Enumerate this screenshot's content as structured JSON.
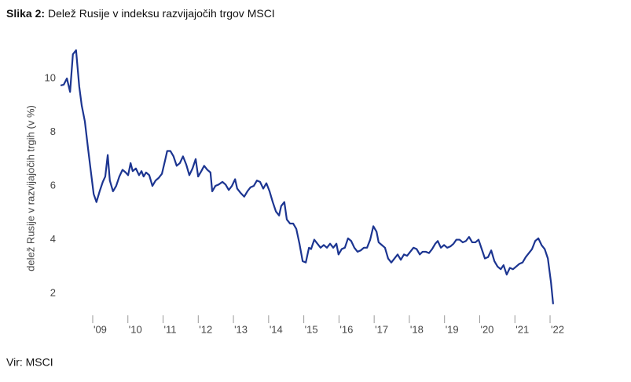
{
  "chart_data": {
    "type": "line",
    "figure_label": "Slika 2:",
    "title": "Delež Rusije v indeksu razvijajočih trgov MSCI",
    "y_label": "delež Rusije v razvijajočih trgih (v %)",
    "source": "Vir: MSCI",
    "color": "#1c3591",
    "x": [
      2008.02,
      2008.11,
      2008.2,
      2008.29,
      2008.37,
      2008.46,
      2008.55,
      2008.62,
      2008.71,
      2008.8,
      2008.87,
      2008.96,
      2009.04,
      2009.13,
      2009.22,
      2009.29,
      2009.36,
      2009.42,
      2009.51,
      2009.6,
      2009.69,
      2009.78,
      2009.87,
      2009.94,
      2010.01,
      2010.07,
      2010.16,
      2010.25,
      2010.32,
      2010.38,
      2010.45,
      2010.54,
      2010.63,
      2010.72,
      2010.81,
      2010.9,
      2010.99,
      2011.05,
      2011.14,
      2011.23,
      2011.32,
      2011.41,
      2011.5,
      2011.59,
      2011.68,
      2011.77,
      2011.86,
      2011.93,
      2012.02,
      2012.1,
      2012.19,
      2012.28,
      2012.33,
      2012.42,
      2012.51,
      2012.62,
      2012.71,
      2012.8,
      2012.89,
      2012.98,
      2013.04,
      2013.13,
      2013.24,
      2013.33,
      2013.42,
      2013.51,
      2013.6,
      2013.69,
      2013.78,
      2013.87,
      2013.96,
      2014.05,
      2014.14,
      2014.23,
      2014.29,
      2014.38,
      2014.45,
      2014.54,
      2014.63,
      2014.72,
      2014.81,
      2014.9,
      2014.99,
      2015.08,
      2015.14,
      2015.23,
      2015.32,
      2015.41,
      2015.5,
      2015.59,
      2015.68,
      2015.77,
      2015.86,
      2015.92,
      2016.01,
      2016.1,
      2016.19,
      2016.28,
      2016.37,
      2016.46,
      2016.55,
      2016.64,
      2016.73,
      2016.82,
      2016.91,
      2017.0,
      2017.06,
      2017.15,
      2017.24,
      2017.33,
      2017.42,
      2017.51,
      2017.6,
      2017.69,
      2017.78,
      2017.87,
      2017.96,
      2018.05,
      2018.14,
      2018.23,
      2018.31,
      2018.4,
      2018.49,
      2018.58,
      2018.67,
      2018.74,
      2018.83,
      2018.92,
      2019.01,
      2019.1,
      2019.19,
      2019.27,
      2019.36,
      2019.45,
      2019.54,
      2019.63,
      2019.72,
      2019.81,
      2019.9,
      2019.99,
      2020.08,
      2020.17,
      2020.26,
      2020.35,
      2020.44,
      2020.53,
      2020.61,
      2020.7,
      2020.79,
      2020.88,
      2020.97,
      2021.06,
      2021.15,
      2021.24,
      2021.33,
      2021.42,
      2021.51,
      2021.6,
      2021.69,
      2021.78,
      2021.87,
      2021.96,
      2022.02
    ],
    "values": [
      9.74,
      9.77,
      10.0,
      9.5,
      10.9,
      11.05,
      9.7,
      9.0,
      8.4,
      7.4,
      6.65,
      5.7,
      5.4,
      5.8,
      6.15,
      6.35,
      7.15,
      6.2,
      5.8,
      6.0,
      6.35,
      6.6,
      6.5,
      6.4,
      6.85,
      6.55,
      6.65,
      6.4,
      6.55,
      6.35,
      6.5,
      6.4,
      6.0,
      6.2,
      6.3,
      6.45,
      6.95,
      7.3,
      7.3,
      7.1,
      6.75,
      6.85,
      7.1,
      6.8,
      6.4,
      6.65,
      7.0,
      6.35,
      6.55,
      6.75,
      6.6,
      6.5,
      5.8,
      6.0,
      6.05,
      6.15,
      6.05,
      5.85,
      6.0,
      6.25,
      5.9,
      5.75,
      5.6,
      5.8,
      5.95,
      6.0,
      6.2,
      6.15,
      5.9,
      6.1,
      5.8,
      5.4,
      5.05,
      4.9,
      5.25,
      5.4,
      4.75,
      4.6,
      4.6,
      4.4,
      3.85,
      3.2,
      3.15,
      3.7,
      3.65,
      4.0,
      3.85,
      3.7,
      3.8,
      3.7,
      3.85,
      3.7,
      3.85,
      3.45,
      3.65,
      3.7,
      4.05,
      3.95,
      3.7,
      3.55,
      3.6,
      3.7,
      3.7,
      4.0,
      4.5,
      4.3,
      3.9,
      3.8,
      3.7,
      3.3,
      3.15,
      3.3,
      3.45,
      3.25,
      3.45,
      3.4,
      3.55,
      3.7,
      3.65,
      3.45,
      3.55,
      3.55,
      3.5,
      3.65,
      3.85,
      3.95,
      3.7,
      3.8,
      3.7,
      3.75,
      3.85,
      4.0,
      4.0,
      3.9,
      3.95,
      4.1,
      3.9,
      3.9,
      4.0,
      3.65,
      3.3,
      3.35,
      3.6,
      3.2,
      3.0,
      2.9,
      3.05,
      2.7,
      2.95,
      2.9,
      3.0,
      3.1,
      3.15,
      3.35,
      3.5,
      3.65,
      3.95,
      4.05,
      3.8,
      3.65,
      3.3,
      2.4,
      1.6
    ],
    "xlim": [
      2008,
      2022.1
    ],
    "xticks": [
      {
        "value": 2009,
        "label": "'09"
      },
      {
        "value": 2010,
        "label": "'10"
      },
      {
        "value": 2011,
        "label": "'11"
      },
      {
        "value": 2012,
        "label": "'12"
      },
      {
        "value": 2013,
        "label": "'13"
      },
      {
        "value": 2014,
        "label": "'14"
      },
      {
        "value": 2015,
        "label": "'15"
      },
      {
        "value": 2016,
        "label": "'16"
      },
      {
        "value": 2017,
        "label": "'17"
      },
      {
        "value": 2018,
        "label": "'18"
      },
      {
        "value": 2019,
        "label": "'19"
      },
      {
        "value": 2020,
        "label": "'20"
      },
      {
        "value": 2021,
        "label": "'21"
      },
      {
        "value": 2022,
        "label": "'22"
      }
    ],
    "ylim": [
      1.4,
      11.2
    ],
    "yticks": [
      2,
      4,
      6,
      8,
      10
    ],
    "grid": false
  }
}
